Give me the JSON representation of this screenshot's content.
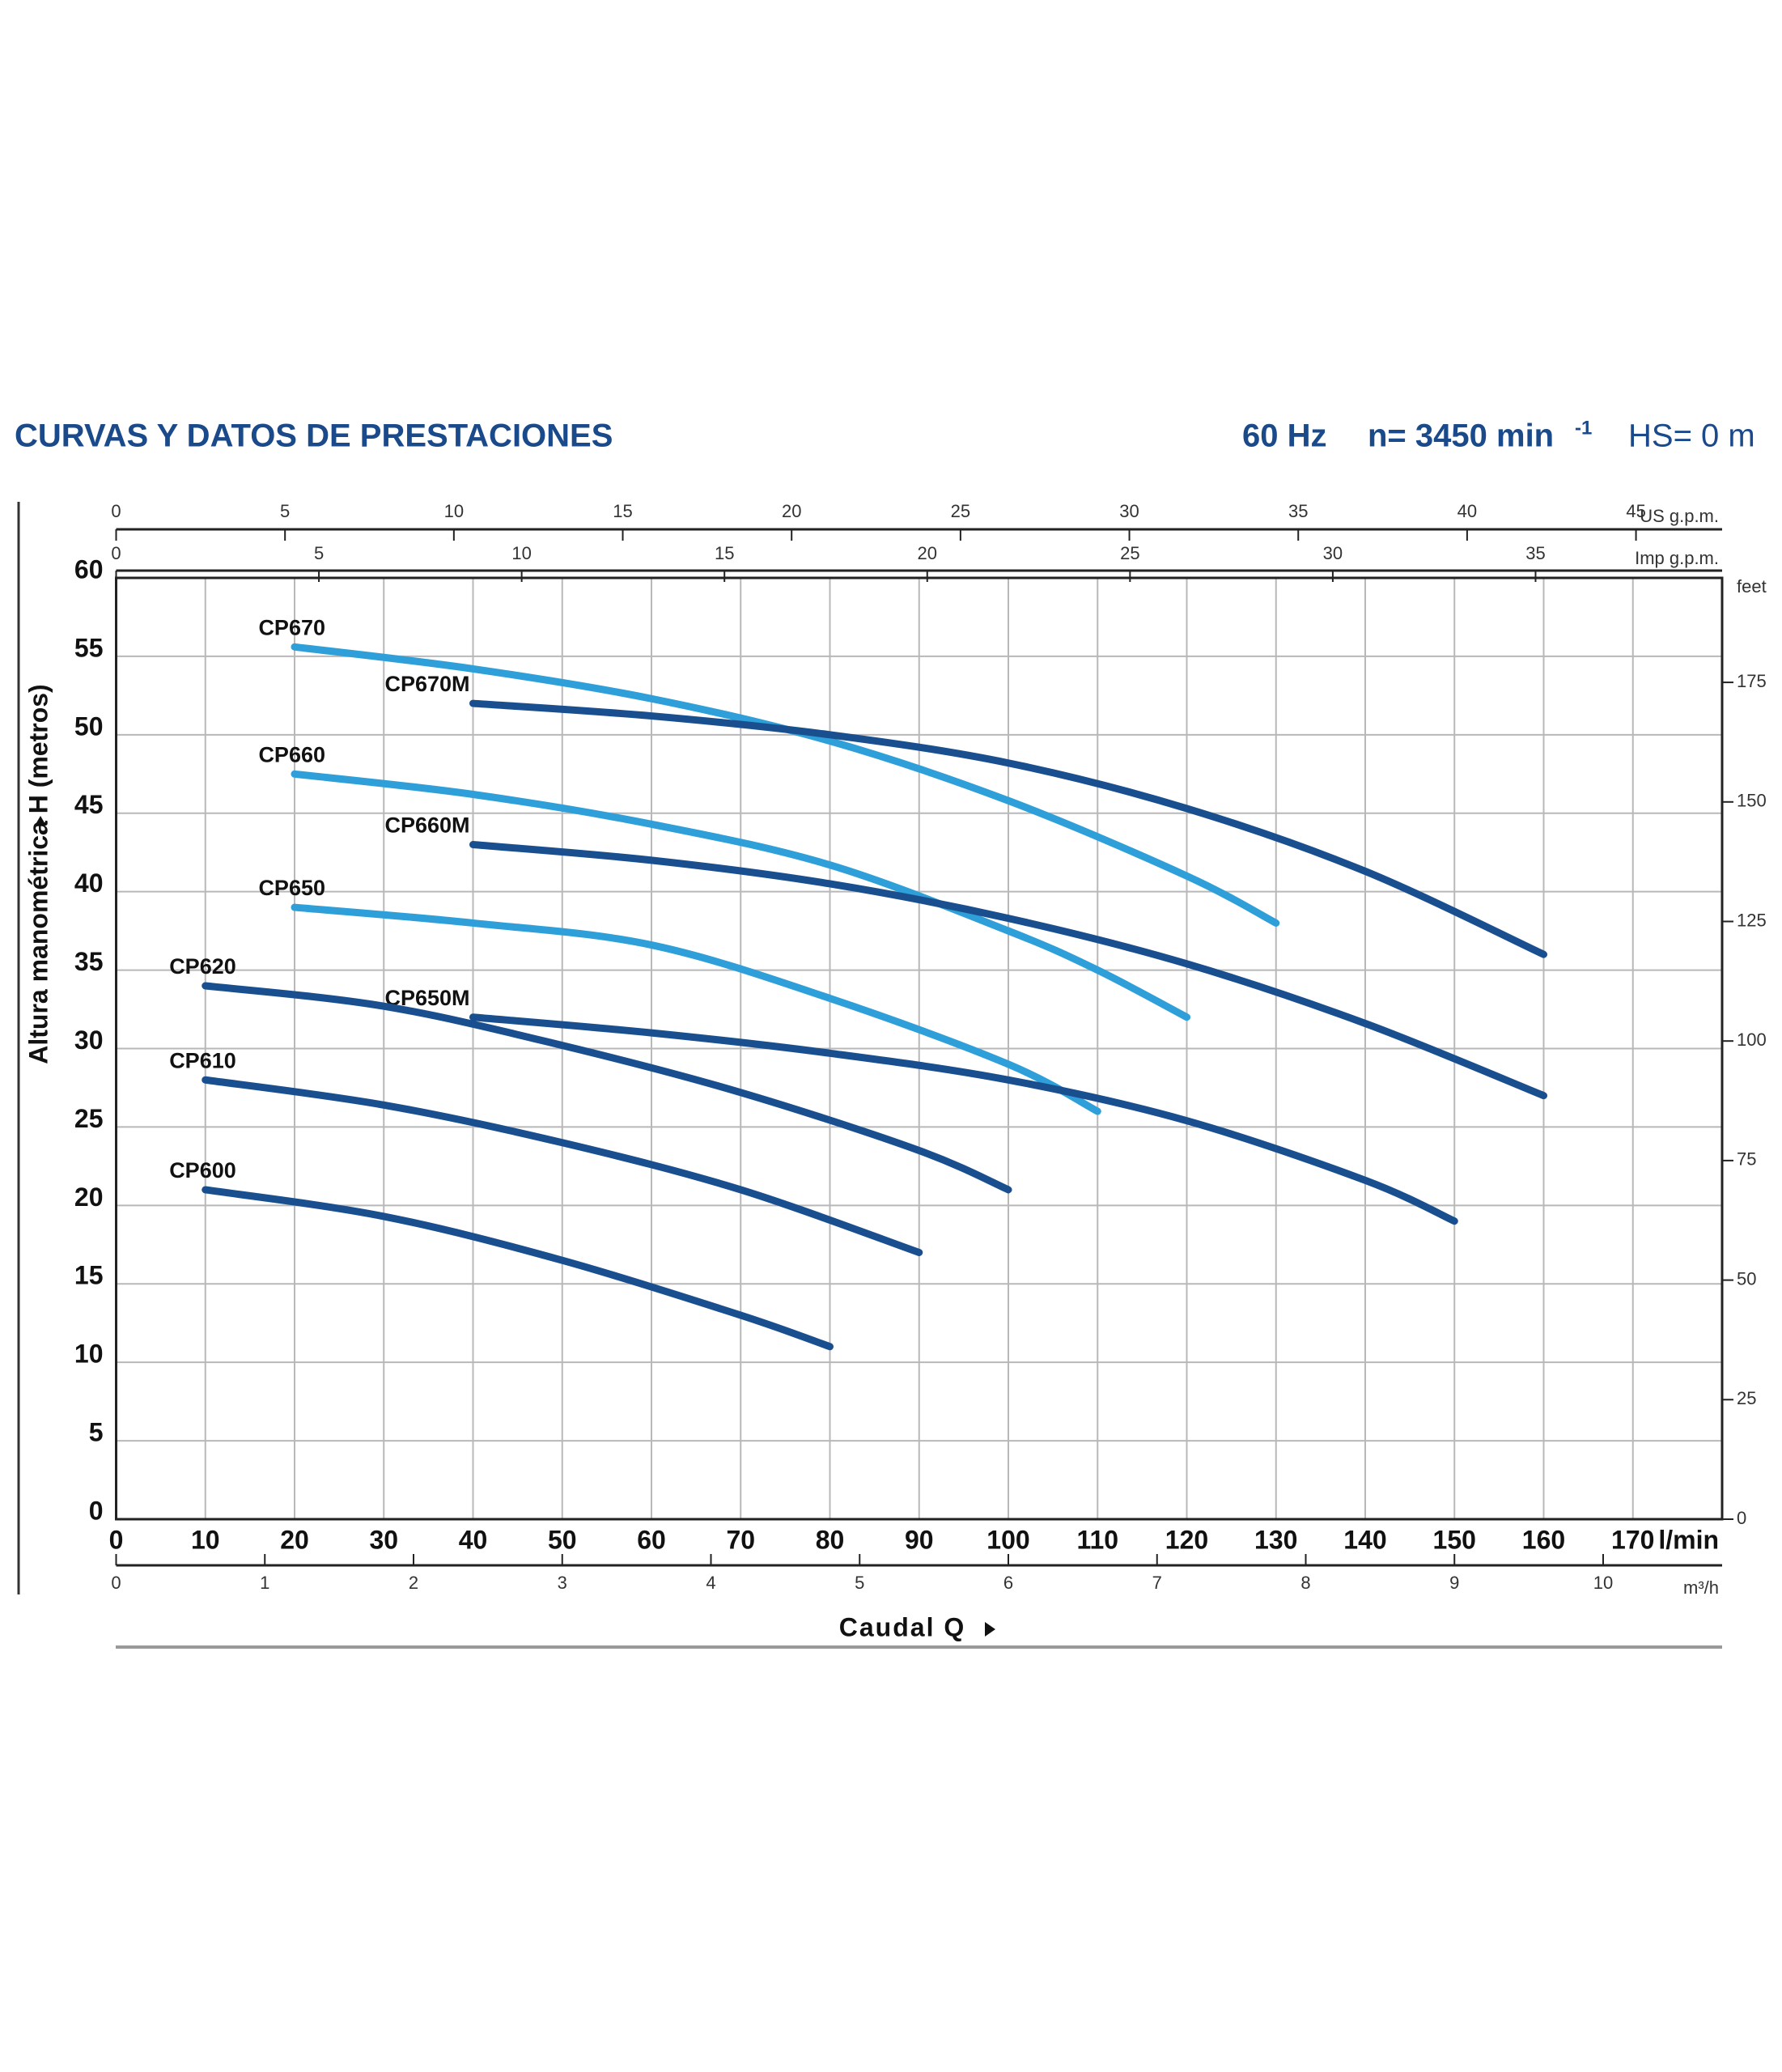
{
  "chart_data": {
    "type": "line",
    "title": "CURVAS Y DATOS DE PRESTACIONES",
    "subtitle_freq": "60 Hz",
    "subtitle_speed": "n= 3450 min",
    "subtitle_speed_exp": "-1",
    "subtitle_hs": "HS= 0 m",
    "ylabel": "Altura manométrica H (metros)",
    "xlabel": "Caudal Q",
    "xunit": "l/min",
    "xlim": [
      0,
      180
    ],
    "xticks": [
      0,
      10,
      20,
      30,
      40,
      50,
      60,
      70,
      80,
      90,
      100,
      110,
      120,
      130,
      140,
      150,
      160,
      170
    ],
    "ylim": [
      0,
      60
    ],
    "yticks": [
      0,
      5,
      10,
      15,
      20,
      25,
      30,
      35,
      40,
      45,
      50,
      55,
      60
    ],
    "y2label": "feet",
    "y2lim": [
      0,
      196.85
    ],
    "y2ticks": [
      0,
      25,
      50,
      75,
      100,
      125,
      150,
      175
    ],
    "x_us": {
      "label": "US g.p.m.",
      "lim": [
        0,
        47.55
      ],
      "ticks": [
        0,
        5,
        10,
        15,
        20,
        25,
        30,
        35,
        40,
        45
      ]
    },
    "x_imp": {
      "label": "Imp g.p.m.",
      "lim": [
        0,
        39.6
      ],
      "ticks": [
        0,
        5,
        10,
        15,
        20,
        25,
        30,
        35
      ]
    },
    "x_m3h": {
      "label": "m³/h",
      "lim": [
        0,
        10.8
      ],
      "ticks": [
        0,
        1,
        2,
        3,
        4,
        5,
        6,
        7,
        8,
        9,
        10
      ]
    },
    "grid": true,
    "series": [
      {
        "name": "CP670",
        "color": "#2e9fd8",
        "x": [
          20,
          40,
          60,
          80,
          100,
          120,
          130
        ],
        "values": [
          55.6,
          54.2,
          52.3,
          49.6,
          45.8,
          41,
          38
        ]
      },
      {
        "name": "CP670M",
        "color": "#1a4f8f",
        "x": [
          40,
          60,
          80,
          100,
          120,
          140,
          160
        ],
        "values": [
          52,
          51.2,
          50,
          48.2,
          45.3,
          41.3,
          36
        ]
      },
      {
        "name": "CP660",
        "color": "#2e9fd8",
        "x": [
          20,
          40,
          60,
          80,
          100,
          110,
          120
        ],
        "values": [
          47.5,
          46.2,
          44.3,
          41.7,
          37.5,
          35,
          32
        ]
      },
      {
        "name": "CP660M",
        "color": "#1a4f8f",
        "x": [
          40,
          60,
          80,
          100,
          120,
          140,
          160
        ],
        "values": [
          43,
          42,
          40.5,
          38.3,
          35.4,
          31.6,
          27
        ]
      },
      {
        "name": "CP650",
        "color": "#2e9fd8",
        "x": [
          20,
          40,
          60,
          80,
          100,
          110
        ],
        "values": [
          39,
          38,
          36.6,
          33.2,
          29,
          26
        ]
      },
      {
        "name": "CP650M",
        "color": "#1a4f8f",
        "x": [
          40,
          60,
          80,
          100,
          120,
          140,
          150
        ],
        "values": [
          32,
          31,
          29.7,
          28,
          25.4,
          21.6,
          19
        ]
      },
      {
        "name": "CP620",
        "color": "#1a4f8f",
        "x": [
          10,
          30,
          50,
          70,
          90,
          100
        ],
        "values": [
          34,
          32.7,
          30.2,
          27.2,
          23.5,
          21
        ]
      },
      {
        "name": "CP610",
        "color": "#1a4f8f",
        "x": [
          10,
          30,
          50,
          70,
          90
        ],
        "values": [
          28,
          26.4,
          24,
          21,
          17
        ]
      },
      {
        "name": "CP600",
        "color": "#1a4f8f",
        "x": [
          10,
          30,
          50,
          70,
          80
        ],
        "values": [
          21,
          19.3,
          16.5,
          13,
          11
        ]
      }
    ]
  }
}
